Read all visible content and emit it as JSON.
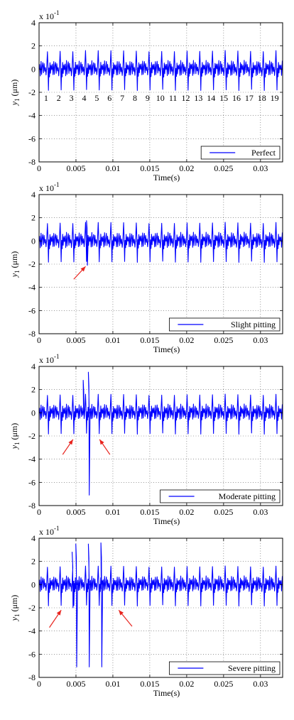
{
  "figure": {
    "background": "#ffffff"
  },
  "chart_data": [
    {
      "type": "line",
      "title": "",
      "xlabel": "Time(s)",
      "ylabel": "y1 (μm)",
      "ylabel_var": "y",
      "ylabel_sub": "1",
      "ylabel_unit": "(μm)",
      "y_multiplier": "x 10",
      "y_multiplier_exp": "-1",
      "xlim": [
        0,
        0.033
      ],
      "ylim": [
        -8,
        4
      ],
      "xticks": [
        0,
        0.005,
        0.01,
        0.015,
        0.02,
        0.025,
        0.03
      ],
      "xtick_labels": [
        "0",
        "0.005",
        "0.01",
        "0.015",
        "0.02",
        "0.025",
        "0.03"
      ],
      "yticks": [
        -8,
        -6,
        -4,
        -2,
        0,
        2,
        4
      ],
      "ytick_labels": [
        "-8",
        "-6",
        "-4",
        "-2",
        "0",
        "2",
        "4"
      ],
      "grid": true,
      "grid_style": "dotted",
      "legend_position": "bottom-right",
      "series": [
        {
          "name": "Perfect",
          "color": "#0000ff",
          "signal": {
            "mesh_period": 0.00172,
            "baseline_peak": 1.55,
            "baseline_trough": -1.8,
            "faults": []
          }
        }
      ],
      "annotations": {
        "tooth_numbers": [
          "1",
          "2",
          "3",
          "4",
          "5",
          "6",
          "7",
          "8",
          "9",
          "10",
          "11",
          "12",
          "13",
          "14",
          "15",
          "16",
          "17",
          "18",
          "19"
        ],
        "arrow_color": "#e8251f",
        "arrows": []
      }
    },
    {
      "type": "line",
      "title": "",
      "xlabel": "Time(s)",
      "ylabel": "y1 (μm)",
      "ylabel_var": "y",
      "ylabel_sub": "1",
      "ylabel_unit": "(μm)",
      "y_multiplier": "x 10",
      "y_multiplier_exp": "-1",
      "xlim": [
        0,
        0.033
      ],
      "ylim": [
        -8,
        4
      ],
      "xticks": [
        0,
        0.005,
        0.01,
        0.015,
        0.02,
        0.025,
        0.03
      ],
      "xtick_labels": [
        "0",
        "0.005",
        "0.01",
        "0.015",
        "0.02",
        "0.025",
        "0.03"
      ],
      "yticks": [
        -8,
        -6,
        -4,
        -2,
        0,
        2,
        4
      ],
      "ytick_labels": [
        "-8",
        "-6",
        "-4",
        "-2",
        "0",
        "2",
        "4"
      ],
      "grid": true,
      "grid_style": "dotted",
      "legend_position": "bottom-right",
      "series": [
        {
          "name": "Slight pitting",
          "color": "#0000ff",
          "signal": {
            "mesh_period": 0.00172,
            "baseline_peak": 1.55,
            "baseline_trough": -1.8,
            "faults": [
              {
                "x": 0.00655,
                "peak": 1.75,
                "trough": -2.1
              }
            ]
          }
        }
      ],
      "annotations": {
        "tooth_numbers": [],
        "arrow_color": "#e8251f",
        "arrows": [
          {
            "from": [
              0.0047,
              -3.3
            ],
            "to": [
              0.0063,
              -2.2
            ]
          }
        ]
      }
    },
    {
      "type": "line",
      "title": "",
      "xlabel": "Time(s)",
      "ylabel": "y1 (μm)",
      "ylabel_var": "y",
      "ylabel_sub": "1",
      "ylabel_unit": "(μm)",
      "y_multiplier": "x 10",
      "y_multiplier_exp": "-1",
      "xlim": [
        0,
        0.033
      ],
      "ylim": [
        -8,
        4
      ],
      "xticks": [
        0,
        0.005,
        0.01,
        0.015,
        0.02,
        0.025,
        0.03
      ],
      "xtick_labels": [
        "0",
        "0.005",
        "0.01",
        "0.015",
        "0.02",
        "0.025",
        "0.03"
      ],
      "yticks": [
        -8,
        -6,
        -4,
        -2,
        0,
        2,
        4
      ],
      "ytick_labels": [
        "-8",
        "-6",
        "-4",
        "-2",
        "0",
        "2",
        "4"
      ],
      "grid": true,
      "grid_style": "dotted",
      "legend_position": "bottom-right",
      "series": [
        {
          "name": "Moderate pitting",
          "color": "#0000ff",
          "signal": {
            "mesh_period": 0.00172,
            "baseline_peak": 1.55,
            "baseline_trough": -1.8,
            "faults": [
              {
                "x": 0.0061,
                "peak": 2.8,
                "trough": -0.5
              },
              {
                "x": 0.0068,
                "peak": 3.5,
                "trough": -7.1
              }
            ]
          }
        }
      ],
      "annotations": {
        "tooth_numbers": [],
        "arrow_color": "#e8251f",
        "arrows": [
          {
            "from": [
              0.0032,
              -3.6
            ],
            "to": [
              0.0046,
              -2.3
            ]
          },
          {
            "from": [
              0.0096,
              -3.6
            ],
            "to": [
              0.0082,
              -2.3
            ]
          }
        ]
      }
    },
    {
      "type": "line",
      "title": "",
      "xlabel": "Time(s)",
      "ylabel": "y1 (μm)",
      "ylabel_var": "y",
      "ylabel_sub": "1",
      "ylabel_unit": "(μm)",
      "y_multiplier": "x 10",
      "y_multiplier_exp": "-1",
      "xlim": [
        0,
        0.033
      ],
      "ylim": [
        -8,
        4
      ],
      "xticks": [
        0,
        0.005,
        0.01,
        0.015,
        0.02,
        0.025,
        0.03
      ],
      "xtick_labels": [
        "0",
        "0.005",
        "0.01",
        "0.015",
        "0.02",
        "0.025",
        "0.03"
      ],
      "yticks": [
        -8,
        -6,
        -4,
        -2,
        0,
        2,
        4
      ],
      "ytick_labels": [
        "-8",
        "-6",
        "-4",
        "-2",
        "0",
        "2",
        "4"
      ],
      "grid": true,
      "grid_style": "dotted",
      "legend_position": "bottom-right",
      "series": [
        {
          "name": "Severe pitting",
          "color": "#0000ff",
          "signal": {
            "mesh_period": 0.00172,
            "baseline_peak": 1.55,
            "baseline_trough": -1.8,
            "faults": [
              {
                "x": 0.0046,
                "peak": 2.8,
                "trough": -2.0
              },
              {
                "x": 0.0051,
                "peak": 3.5,
                "trough": -7.1
              },
              {
                "x": 0.0068,
                "peak": 3.5,
                "trough": -7.1
              },
              {
                "x": 0.0085,
                "peak": 3.6,
                "trough": -7.1
              }
            ]
          }
        }
      ],
      "annotations": {
        "tooth_numbers": [],
        "arrow_color": "#e8251f",
        "arrows": [
          {
            "from": [
              0.0014,
              -3.7
            ],
            "to": [
              0.003,
              -2.2
            ]
          },
          {
            "from": [
              0.0126,
              -3.6
            ],
            "to": [
              0.0108,
              -2.2
            ]
          }
        ]
      }
    }
  ]
}
